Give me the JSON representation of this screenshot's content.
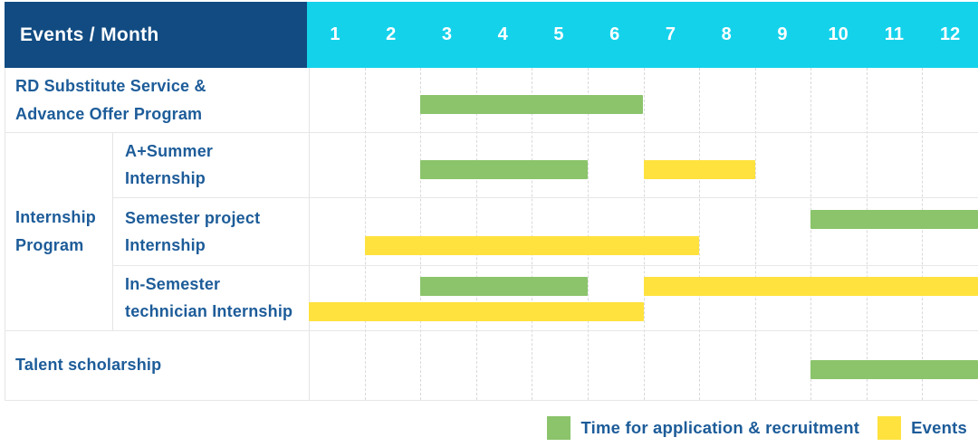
{
  "header": {
    "title": "Events / Month",
    "months": [
      "1",
      "2",
      "3",
      "4",
      "5",
      "6",
      "7",
      "8",
      "9",
      "10",
      "11",
      "12"
    ]
  },
  "colors": {
    "header_bg": "#114b82",
    "months_bg": "#15d2eb",
    "label_text": "#1d5c99",
    "application_green": "#8bc46b",
    "events_yellow": "#ffe23e"
  },
  "chart_data": {
    "type": "gantt",
    "title": "Events / Month",
    "x_axis": {
      "unit": "month",
      "ticks": [
        1,
        2,
        3,
        4,
        5,
        6,
        7,
        8,
        9,
        10,
        11,
        12
      ],
      "range": [
        1,
        12
      ]
    },
    "series": [
      {
        "name": "Time for application & recruitment",
        "color": "#8bc46b"
      },
      {
        "name": "Events",
        "color": "#ffe23e"
      }
    ],
    "groups": [
      {
        "label_lines": [
          "Internship",
          "Program"
        ],
        "row_start": 1,
        "row_end": 3
      }
    ],
    "rows": [
      {
        "label_lines": [
          "RD Substitute Service &",
          "Advance Offer Program"
        ],
        "grouped": false,
        "bars": [
          {
            "series": "Time for application & recruitment",
            "start_month": 3,
            "end_month": 6,
            "lane": "single"
          }
        ]
      },
      {
        "label_lines": [
          "A+Summer",
          "Internship"
        ],
        "grouped": true,
        "bars": [
          {
            "series": "Time for application & recruitment",
            "start_month": 3,
            "end_month": 5,
            "lane": "single"
          },
          {
            "series": "Events",
            "start_month": 7,
            "end_month": 8,
            "lane": "single"
          }
        ]
      },
      {
        "label_lines": [
          "Semester project",
          "Internship"
        ],
        "grouped": true,
        "bars": [
          {
            "series": "Time for application & recruitment",
            "start_month": 10,
            "end_month": 12,
            "lane": "top"
          },
          {
            "series": "Events",
            "start_month": 2,
            "end_month": 7,
            "lane": "bottom"
          }
        ]
      },
      {
        "label_lines": [
          "In-Semester",
          "technician Internship"
        ],
        "grouped": true,
        "bars": [
          {
            "series": "Time for application & recruitment",
            "start_month": 3,
            "end_month": 5,
            "lane": "top"
          },
          {
            "series": "Events",
            "start_month": 7,
            "end_month": 12,
            "lane": "top"
          },
          {
            "series": "Events",
            "start_month": 1,
            "end_month": 6,
            "lane": "bottom"
          }
        ]
      },
      {
        "label_lines": [
          "Talent scholarship"
        ],
        "grouped": false,
        "bars": [
          {
            "series": "Time for application & recruitment",
            "start_month": 10,
            "end_month": 12,
            "lane": "single"
          }
        ]
      }
    ],
    "legend": [
      {
        "label": "Time for application & recruitment",
        "series": "Time for application & recruitment"
      },
      {
        "label": "Events",
        "series": "Events"
      }
    ],
    "layout_hints": {
      "grid": "dashed-vertical-month-lines",
      "legend_position": "bottom-right"
    }
  }
}
